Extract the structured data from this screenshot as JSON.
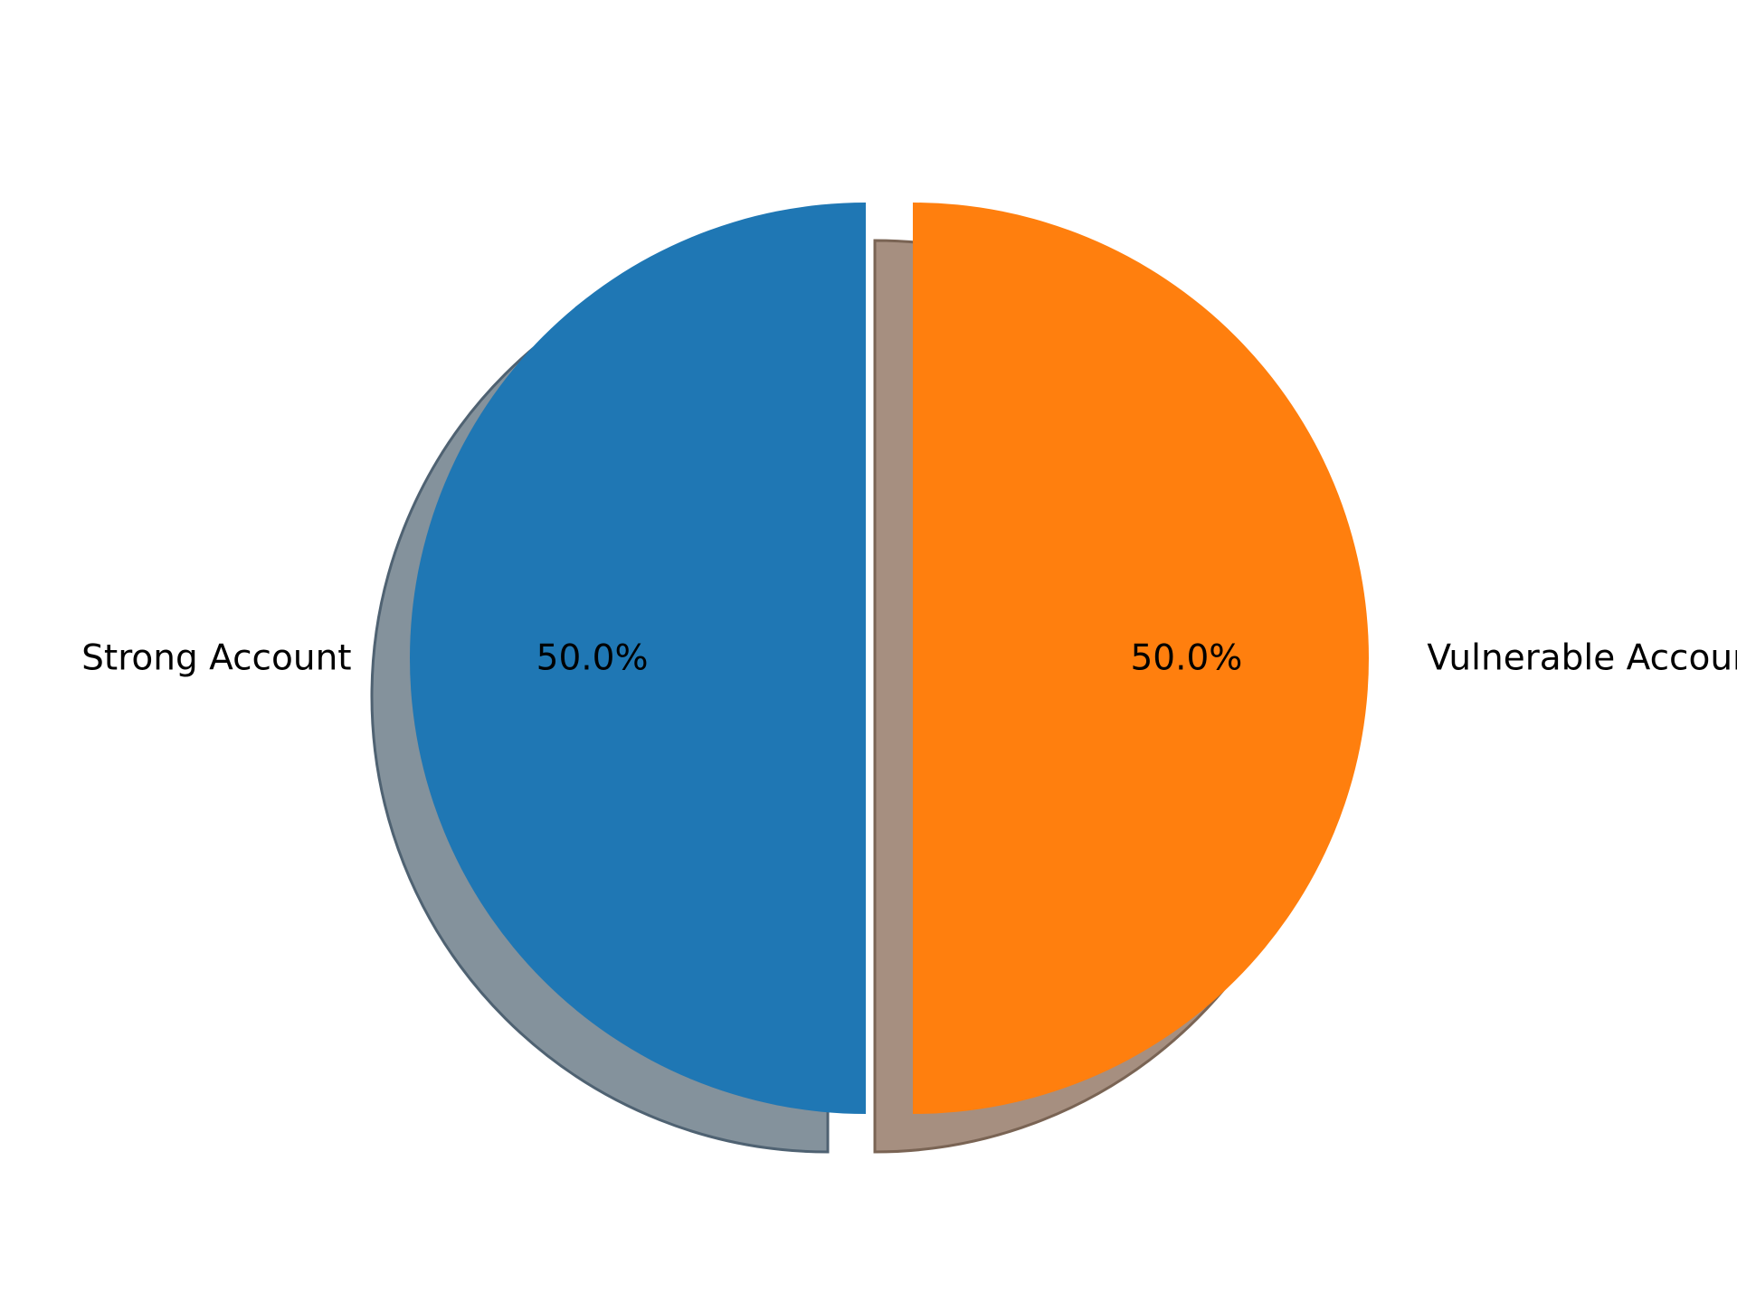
{
  "chart_data": {
    "type": "pie",
    "title": "",
    "labels": [
      "Strong Account",
      "Vulnerable Account"
    ],
    "values": [
      50.0,
      50.0
    ],
    "percent_labels": [
      "50.0%",
      "50.0%"
    ],
    "colors": [
      "#1f77b4",
      "#ff7f0e"
    ],
    "start_angle_deg": 90,
    "direction": "counterclockwise",
    "exploded": true,
    "shadow": true
  }
}
